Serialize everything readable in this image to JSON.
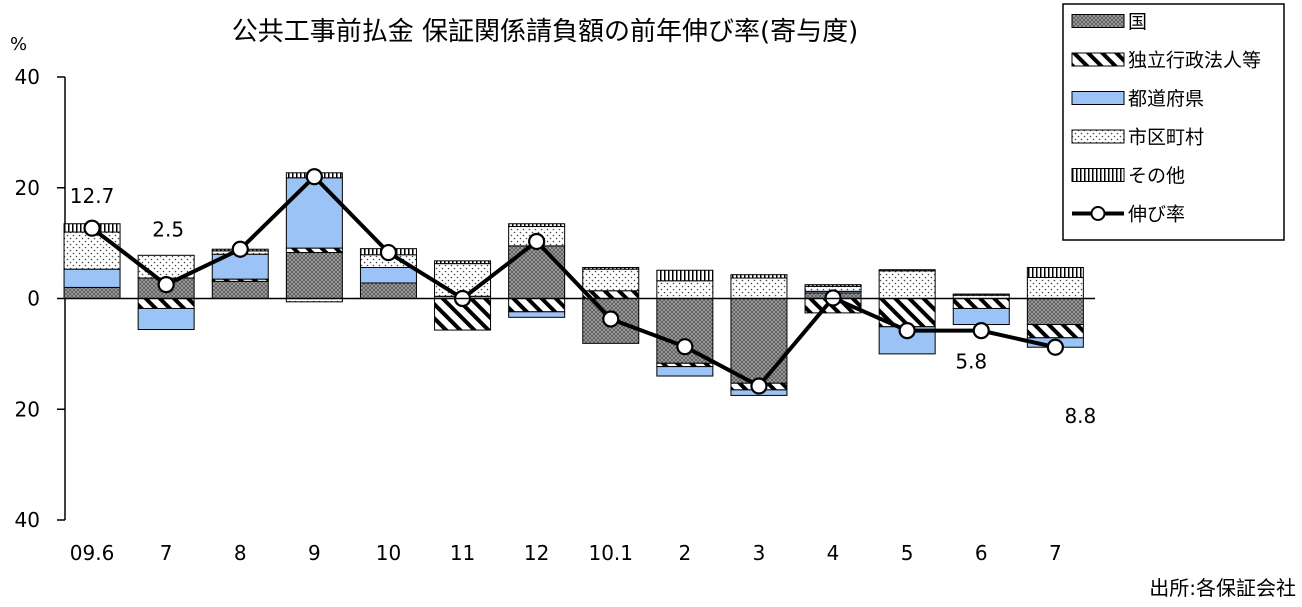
{
  "chart_data": {
    "type": "bar",
    "title": "公共工事前払金 保証関係請負額の前年伸び率(寄与度)",
    "ylabel": "%",
    "ylim": [
      -40,
      40
    ],
    "yticks": [
      {
        "value": 40,
        "label": "40"
      },
      {
        "value": 20,
        "label": "20"
      },
      {
        "value": 0,
        "label": "0"
      },
      {
        "value": -20,
        "label": "20"
      },
      {
        "value": -40,
        "label": "40"
      }
    ],
    "categories": [
      "09.6",
      "7",
      "8",
      "9",
      "10",
      "11",
      "12",
      "10.1",
      "2",
      "3",
      "4",
      "5",
      "6",
      "7"
    ],
    "stacked": true,
    "legend_position": "top-right",
    "series": [
      {
        "name": "国",
        "pattern": "crosshatch",
        "color": "#a0a0a0",
        "values": [
          2.0,
          3.7,
          3.1,
          8.3,
          2.8,
          0,
          9.5,
          -8.1,
          -11.7,
          -15.3,
          1.0,
          0,
          0,
          -4.7
        ]
      },
      {
        "name": "独立行政法人等",
        "pattern": "diagonal",
        "color": "#000000",
        "values": [
          0,
          -1.8,
          0.4,
          0.8,
          0,
          -5.7,
          -2.4,
          1.4,
          -0.6,
          -1.2,
          -2.6,
          -5.1,
          -1.8,
          -2.4
        ]
      },
      {
        "name": "都道府県",
        "pattern": "solid",
        "color": "#9cc3f5",
        "values": [
          3.3,
          -3.8,
          4.5,
          12.7,
          2.8,
          0.4,
          -1.0,
          0,
          -1.7,
          -1.0,
          0.3,
          -4.9,
          -2.9,
          -1.7
        ]
      },
      {
        "name": "市区町村",
        "pattern": "dots",
        "color": "#ffffff",
        "values": [
          6.7,
          4.1,
          0.6,
          -0.6,
          2.3,
          5.9,
          3.5,
          3.9,
          3.2,
          3.7,
          0.9,
          5.0,
          0.6,
          3.8
        ]
      },
      {
        "name": "その他",
        "pattern": "vertical",
        "color": "#ffffff",
        "values": [
          1.5,
          0,
          0.3,
          0.9,
          1.1,
          0.5,
          0.5,
          0.3,
          1.9,
          0.6,
          0.3,
          0.2,
          0.2,
          1.8
        ]
      }
    ],
    "line": {
      "name": "伸び率",
      "values": [
        12.7,
        2.5,
        8.9,
        22.0,
        8.3,
        0.0,
        10.3,
        -3.7,
        -8.7,
        -15.8,
        0.1,
        -5.8,
        -5.8,
        -8.8
      ]
    },
    "data_labels": [
      {
        "index": 0,
        "text": "12.7"
      },
      {
        "index": 1,
        "text": "2.5"
      },
      {
        "index": 12,
        "text": "5.8"
      },
      {
        "index": 13,
        "text": "8.8"
      }
    ],
    "source": "出所:各保証会社"
  }
}
